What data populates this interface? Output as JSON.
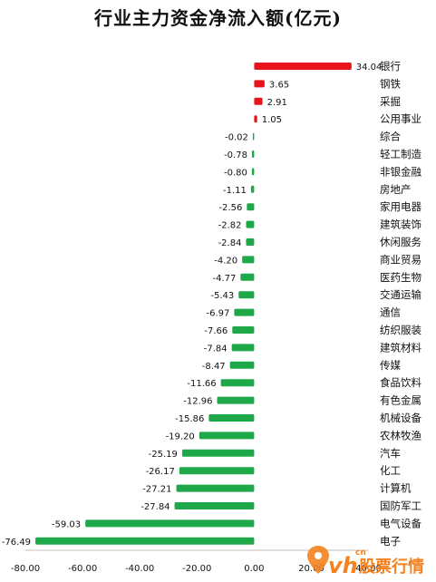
{
  "chart_data": {
    "type": "bar",
    "orientation": "horizontal",
    "title": "行业主力资金净流入额(亿元)",
    "xlabel": "",
    "ylabel": "",
    "xlim": [
      -80,
      40
    ],
    "x_ticks": [
      "-80.00",
      "-60.00",
      "-40.00",
      "-20.00",
      "0.00",
      "20.00",
      "40.00"
    ],
    "x_tick_values": [
      -80,
      -60,
      -40,
      -20,
      0,
      20,
      40
    ],
    "grid": false,
    "legend": "none",
    "colors": {
      "positive": "#e8141b",
      "negative": "#1fa84a"
    },
    "categories": [
      "银行",
      "钢铁",
      "采掘",
      "公用事业",
      "综合",
      "轻工制造",
      "非银金融",
      "房地产",
      "家用电器",
      "建筑装饰",
      "休闲服务",
      "商业贸易",
      "医药生物",
      "交通运输",
      "通信",
      "纺织服装",
      "建筑材料",
      "传媒",
      "食品饮料",
      "有色金属",
      "机械设备",
      "农林牧渔",
      "汽车",
      "化工",
      "计算机",
      "国防军工",
      "电气设备",
      "电子"
    ],
    "values": [
      34.04,
      3.65,
      2.91,
      1.05,
      -0.02,
      -0.78,
      -0.8,
      -1.11,
      -2.56,
      -2.82,
      -2.84,
      -4.2,
      -4.77,
      -5.43,
      -6.97,
      -7.66,
      -7.84,
      -8.47,
      -11.66,
      -12.96,
      -15.86,
      -19.2,
      -25.19,
      -26.17,
      -27.21,
      -27.84,
      -59.03,
      -76.49
    ],
    "value_labels": [
      "34.04",
      "3.65",
      "2.91",
      "1.05",
      "-0.02",
      "-0.78",
      "-0.80",
      "-1.11",
      "-2.56",
      "-2.82",
      "-2.84",
      "-4.20",
      "-4.77",
      "-5.43",
      "-6.97",
      "-7.66",
      "-7.84",
      "-8.47",
      "-11.66",
      "-12.96",
      "-15.86",
      "-19.20",
      "-25.19",
      "-26.17",
      "-27.21",
      "-27.84",
      "-59.03",
      "-76.49"
    ]
  },
  "watermark": {
    "brand": "vh",
    "tag": "cn",
    "text": "股票行情",
    "color": "#f5821f"
  }
}
